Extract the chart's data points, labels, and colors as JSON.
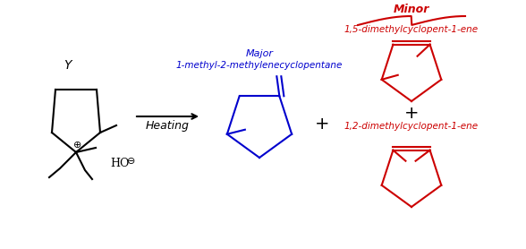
{
  "bg_color": "#ffffff",
  "black": "#000000",
  "blue": "#0000CD",
  "red": "#CC0000",
  "arrow_label": "Heating",
  "product1_label1": "1-methyl-2-methylenecyclopentane",
  "product1_label2": "Major",
  "product2_label": "1,2-dimethylcyclopent-1-ene",
  "product3_label": "1,5-dimethylcyclopent-1-ene",
  "minor_label": "Minor",
  "plus_sign": "+",
  "reactant_label": "Y",
  "HO_label": "HO",
  "plus_charge": "⊕",
  "minus_charge": "⊖"
}
